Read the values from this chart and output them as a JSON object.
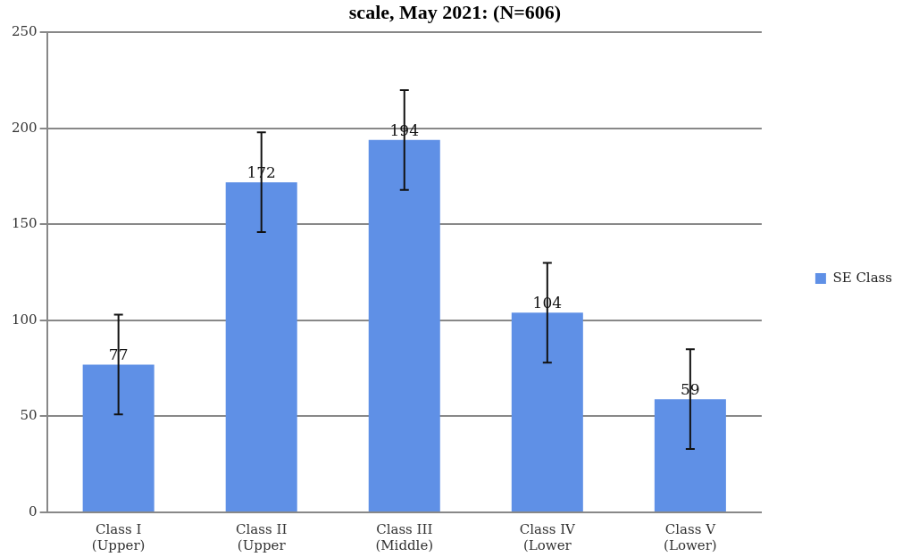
{
  "chart_data": {
    "type": "bar",
    "title": "scale, May 2021: (N=606)",
    "categories": [
      "Class I\n(Upper)",
      "Class II\n(Upper",
      "Class III\n(Middle)",
      "Class IV\n(Lower",
      "Class V\n(Lower)"
    ],
    "series": [
      {
        "name": "SE Class",
        "color": "#5f90e6",
        "values": [
          77,
          172,
          194,
          104,
          59
        ],
        "errors": [
          26,
          26,
          26,
          26,
          26
        ]
      }
    ],
    "ylim": [
      0,
      250
    ],
    "yticks": [
      0,
      50,
      100,
      150,
      200,
      250
    ],
    "grid": "y",
    "legend": "right",
    "data_labels": true
  }
}
